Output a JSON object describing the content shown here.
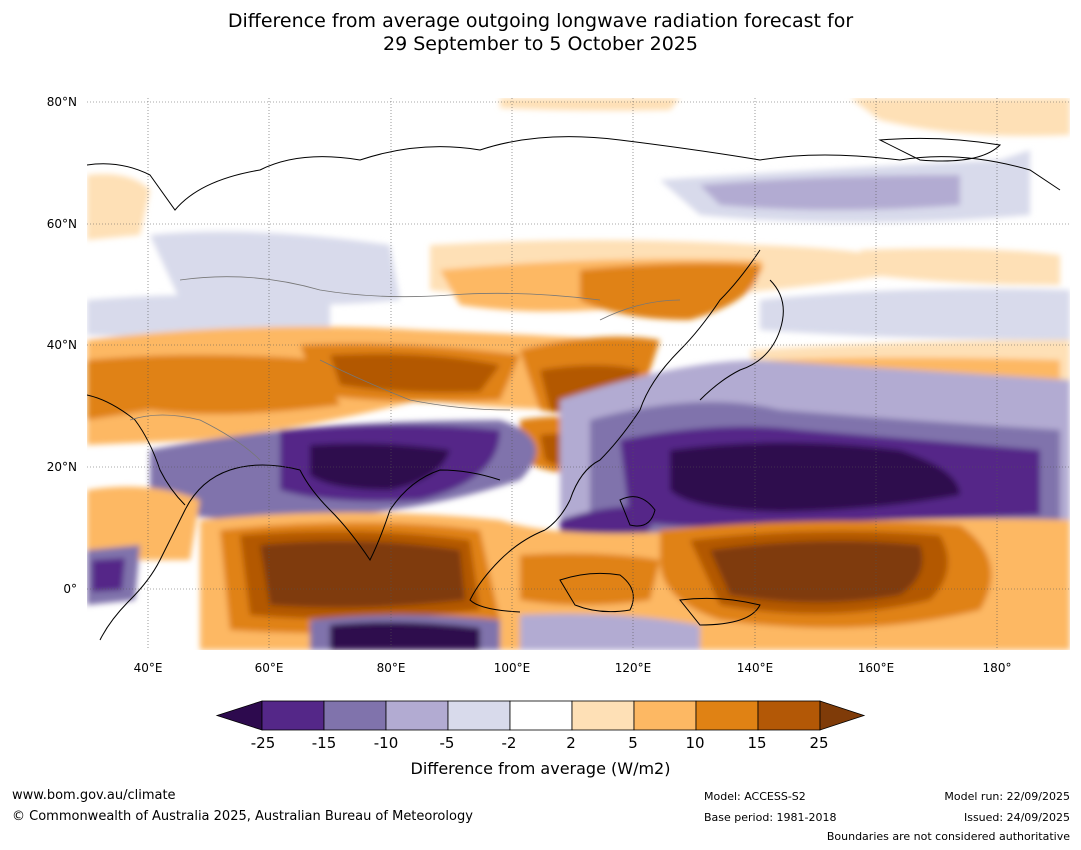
{
  "title": {
    "line1": "Difference from average outgoing longwave radiation forecast for",
    "line2": "29 September to 5 October 2025"
  },
  "map": {
    "lat_labels": [
      "80°N",
      "60°N",
      "40°N",
      "20°N",
      "0°"
    ],
    "lon_labels": [
      "40°E",
      "60°E",
      "80°E",
      "100°E",
      "120°E",
      "140°E",
      "160°E",
      "180°"
    ]
  },
  "colorbar": {
    "ticks": [
      "-25",
      "-15",
      "-10",
      "-5",
      "-2",
      "2",
      "5",
      "10",
      "15",
      "25"
    ],
    "label": "Difference from average (W/m2)",
    "colors": [
      "#2d0a4e",
      "#542788",
      "#8073ac",
      "#b2abd2",
      "#d8daeb",
      "#ffffff",
      "#fee0b6",
      "#fdb863",
      "#e08214",
      "#b35806",
      "#7f3b08"
    ]
  },
  "footer": {
    "website": "www.bom.gov.au/climate",
    "copyright": "© Commonwealth of Australia 2025, Australian Bureau of Meteorology",
    "model": "Model: ACCESS-S2",
    "base_period": "Base period: 1981-2018",
    "model_run": "Model run: 22/09/2025",
    "issued": "Issued: 24/09/2025",
    "disclaimer": "Boundaries are not considered authoritative"
  }
}
